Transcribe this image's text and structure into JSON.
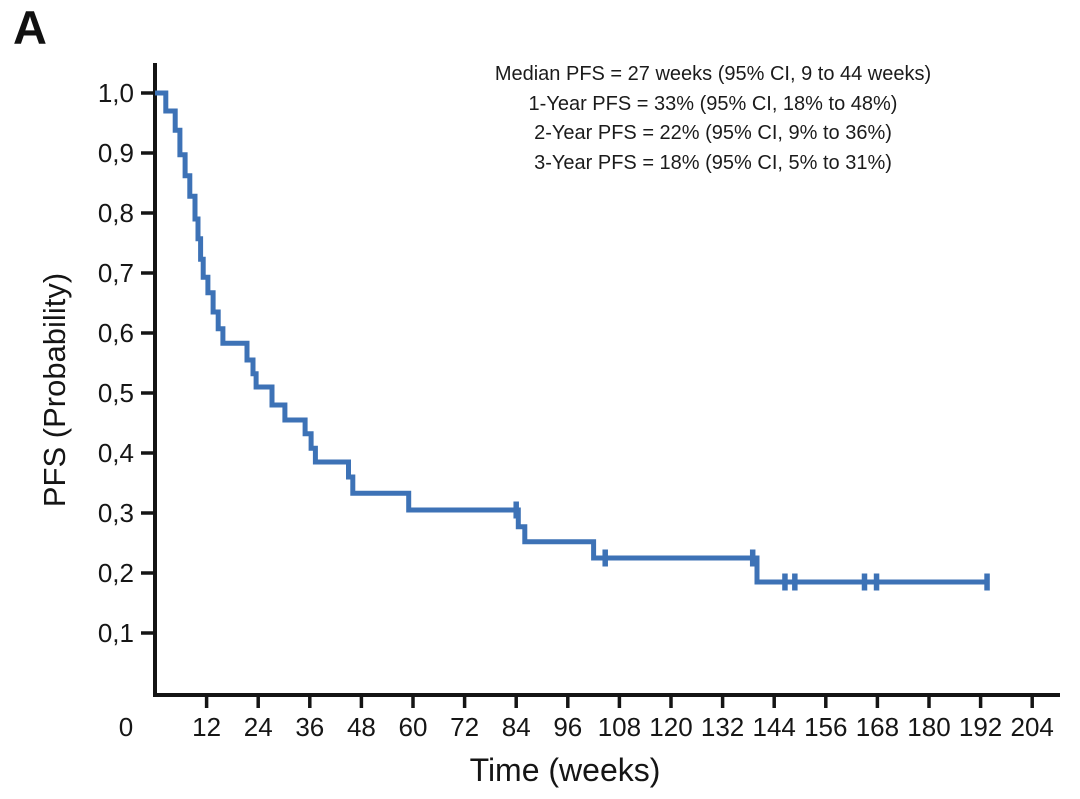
{
  "panel_label": "A",
  "annotation": [
    "Median PFS = 27 weeks (95% CI, 9 to 44 weeks)",
    "1-Year PFS = 33% (95% CI, 18% to 48%)",
    "2-Year PFS = 22% (95% CI, 9% to 36%)",
    "3-Year PFS = 18% (95% CI, 5% to 31%)"
  ],
  "chart_data": {
    "type": "line",
    "subtype": "kaplan-meier-step-curve",
    "title": "",
    "xlabel": "Time (weeks)",
    "ylabel": "PFS (Probability)",
    "xlim": [
      0,
      211
    ],
    "ylim": [
      0,
      1.05
    ],
    "grid": false,
    "legend": "none",
    "x_ticks": [
      0,
      12,
      24,
      36,
      48,
      60,
      72,
      84,
      96,
      108,
      120,
      132,
      144,
      156,
      168,
      180,
      192,
      204
    ],
    "y_ticks": [
      {
        "value": 0.1,
        "label": "0,1"
      },
      {
        "value": 0.2,
        "label": "0,2"
      },
      {
        "value": 0.3,
        "label": "0,3"
      },
      {
        "value": 0.4,
        "label": "0,4"
      },
      {
        "value": 0.5,
        "label": "0,5"
      },
      {
        "value": 0.6,
        "label": "0,6"
      },
      {
        "value": 0.7,
        "label": "0,7"
      },
      {
        "value": 0.8,
        "label": "0,8"
      },
      {
        "value": 0.9,
        "label": "0,9"
      },
      {
        "value": 1.0,
        "label": "1,0"
      }
    ],
    "series_name": "PFS",
    "steps_week_probability": [
      [
        0,
        1.0
      ],
      [
        2.5,
        0.97
      ],
      [
        4.7,
        0.938
      ],
      [
        5.8,
        0.897
      ],
      [
        7.0,
        0.862
      ],
      [
        8.1,
        0.828
      ],
      [
        9.3,
        0.79
      ],
      [
        10.0,
        0.757
      ],
      [
        10.6,
        0.723
      ],
      [
        11.2,
        0.693
      ],
      [
        12.3,
        0.667
      ],
      [
        13.5,
        0.635
      ],
      [
        14.7,
        0.607
      ],
      [
        15.8,
        0.583
      ],
      [
        21.4,
        0.555
      ],
      [
        22.8,
        0.532
      ],
      [
        23.5,
        0.51
      ],
      [
        27.2,
        0.48
      ],
      [
        30.2,
        0.455
      ],
      [
        34.9,
        0.432
      ],
      [
        36.3,
        0.408
      ],
      [
        37.3,
        0.385
      ],
      [
        45.0,
        0.36
      ],
      [
        46.0,
        0.333
      ],
      [
        59.0,
        0.305
      ],
      [
        84.5,
        0.277
      ],
      [
        86.0,
        0.252
      ],
      [
        102.0,
        0.225
      ],
      [
        140.0,
        0.185
      ]
    ],
    "curve_end_week": 194,
    "censor_marks_week_probability": [
      [
        84,
        0.305
      ],
      [
        104.7,
        0.225
      ],
      [
        139,
        0.225
      ],
      [
        146.5,
        0.185
      ],
      [
        148.8,
        0.185
      ],
      [
        165,
        0.185
      ],
      [
        167.8,
        0.185
      ],
      [
        193.5,
        0.185
      ]
    ],
    "line_color": "#3d72b6",
    "axis_color": "#141414",
    "text_color": "#161616"
  }
}
